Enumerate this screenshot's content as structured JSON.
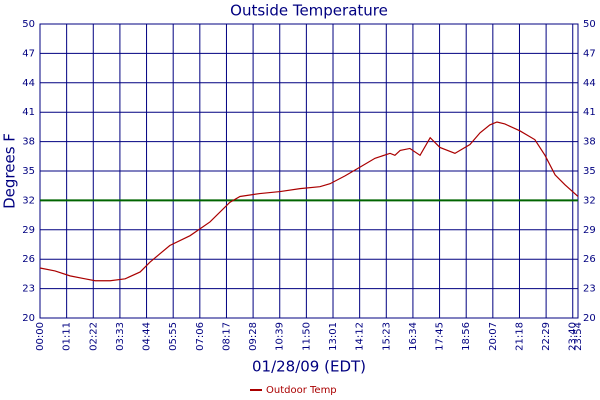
{
  "chart_data": {
    "type": "line",
    "title": "Outside Temperature",
    "x_label": "01/28/09 (EDT)",
    "y_label": "Degrees F",
    "xlim": [
      0,
      1434
    ],
    "xticks": [
      {
        "value": 0,
        "label": "00:00"
      },
      {
        "value": 71,
        "label": "01:11"
      },
      {
        "value": 142,
        "label": "02:22"
      },
      {
        "value": 213,
        "label": "03:33"
      },
      {
        "value": 284,
        "label": "04:44"
      },
      {
        "value": 355,
        "label": "05:55"
      },
      {
        "value": 426,
        "label": "07:06"
      },
      {
        "value": 497,
        "label": "08:17"
      },
      {
        "value": 568,
        "label": "09:28"
      },
      {
        "value": 639,
        "label": "10:39"
      },
      {
        "value": 710,
        "label": "11:50"
      },
      {
        "value": 781,
        "label": "13:01"
      },
      {
        "value": 852,
        "label": "14:12"
      },
      {
        "value": 923,
        "label": "15:23"
      },
      {
        "value": 994,
        "label": "16:34"
      },
      {
        "value": 1065,
        "label": "17:45"
      },
      {
        "value": 1136,
        "label": "18:56"
      },
      {
        "value": 1207,
        "label": "20:07"
      },
      {
        "value": 1278,
        "label": "21:18"
      },
      {
        "value": 1349,
        "label": "22:29"
      },
      {
        "value": 1420,
        "label": "23:40"
      },
      {
        "value": 1434,
        "label": "23:54"
      }
    ],
    "ylim": [
      20,
      50
    ],
    "yticks": [
      20,
      23,
      26,
      29,
      32,
      35,
      38,
      41,
      44,
      47,
      50
    ],
    "grid": true,
    "grid_color": "#000080",
    "reference_line": {
      "value": 32,
      "color": "#006400"
    },
    "legend": "bottom",
    "series": [
      {
        "name": "Outdoor Temp",
        "color": "#aa0000",
        "x": [
          0,
          40,
          80,
          120,
          147,
          187,
          227,
          267,
          293,
          346,
          400,
          453,
          506,
          533,
          586,
          640,
          693,
          746,
          773,
          813,
          853,
          893,
          933,
          946,
          960,
          986,
          1013,
          1040,
          1066,
          1106,
          1146,
          1173,
          1199,
          1218,
          1239,
          1279,
          1319,
          1346,
          1373,
          1399,
          1434
        ],
        "values": [
          25.1,
          24.8,
          24.3,
          24.0,
          23.8,
          23.8,
          24.0,
          24.7,
          25.7,
          27.4,
          28.4,
          29.8,
          31.8,
          32.4,
          32.7,
          32.9,
          33.2,
          33.4,
          33.7,
          34.5,
          35.4,
          36.3,
          36.8,
          36.6,
          37.1,
          37.3,
          36.6,
          38.4,
          37.4,
          36.8,
          37.7,
          38.9,
          39.7,
          40.0,
          39.8,
          39.1,
          38.2,
          36.6,
          34.6,
          33.6,
          32.4
        ]
      }
    ]
  }
}
